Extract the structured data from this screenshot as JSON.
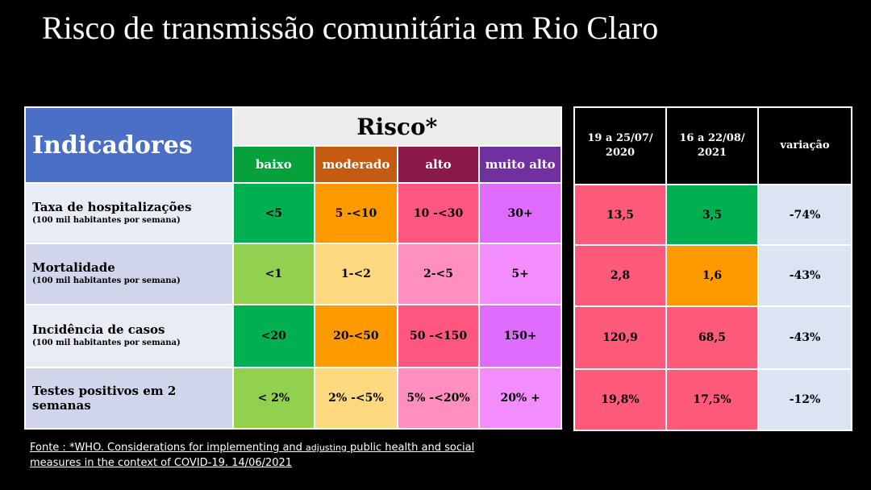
{
  "title": "Risco de transmissão comunitária em Rio Claro",
  "left_table": {
    "indicadores_label": "Indicadores",
    "risco_label": "Risco*",
    "levels": [
      {
        "label": "baixo",
        "color": "#07a13c"
      },
      {
        "label": "moderado",
        "color": "#c55a11"
      },
      {
        "label": "alto",
        "color": "#8b1a4a"
      },
      {
        "label": "muito alto",
        "color": "#7030a0"
      }
    ],
    "rows": [
      {
        "label": "Taxa de hospitalizações",
        "sub": "(100 mil habitantes por semana)",
        "values": [
          "<5",
          "5 -<10",
          "10 -<30",
          "30+"
        ]
      },
      {
        "label": "Mortalidade",
        "sub": "(100 mil habitantes por semana)",
        "values": [
          "<1",
          "1-<2",
          "2-<5",
          "5+"
        ]
      },
      {
        "label": "Incidência de casos",
        "sub": "(100 mil habitantes por semana)",
        "values": [
          "<20",
          "20-<50",
          "50 -<150",
          "150+"
        ]
      },
      {
        "label": "Testes positivos em 2 semanas",
        "sub": "",
        "values": [
          "< 2%",
          "2% -<5%",
          "5% -<20%",
          "20% +"
        ]
      }
    ]
  },
  "right_table": {
    "headers": [
      "19 a 25/07/ 2020",
      "16 a 22/08/ 2021",
      "variação"
    ],
    "rows": [
      [
        "13,5",
        "3,5",
        "-74%"
      ],
      [
        "2,8",
        "1,6",
        "-43%"
      ],
      [
        "120,9",
        "68,5",
        "-43%"
      ],
      [
        "19,8%",
        "17,5%",
        "-12%"
      ]
    ]
  },
  "footnote": {
    "part1": "Fonte : *WHO. Considerations for implementing and ",
    "part2": "adjusting",
    "part3": " public health and social measures in the context of COVID-19. 14/06/2021"
  },
  "colors": {
    "baixo_dark": "#00b050",
    "baixo_light": "#92d050",
    "moderado_dark": "#ff9900",
    "moderado_light": "#ffd97f",
    "alto_dark": "#ff577f",
    "alto_light": "#ff8fbf",
    "muito_alto_dark": "#df6bff",
    "muito_alto_light": "#f28cff",
    "label_bg_1": "#e9ebf5",
    "label_bg_2": "#cfd5ea",
    "red_cell": "#ff5a7a",
    "green_cell": "#00b050",
    "orange_cell": "#ff9900",
    "var_bg": "#dbe4f3"
  }
}
